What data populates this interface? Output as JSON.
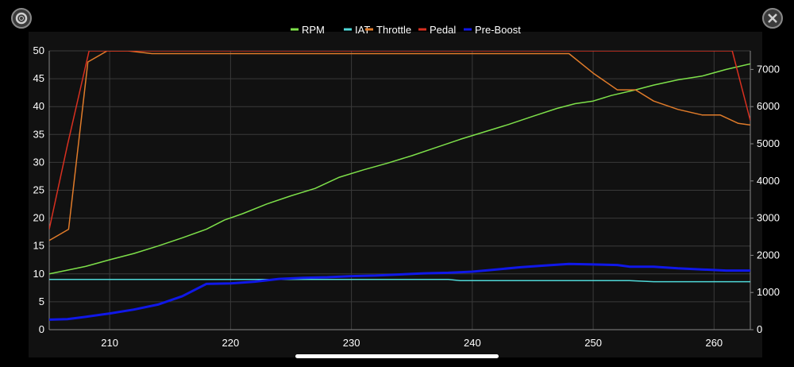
{
  "chart_data": {
    "type": "line",
    "legend_position": "top-center",
    "grid": true,
    "x_range": [
      205,
      263
    ],
    "x_ticks": [
      210,
      220,
      230,
      240,
      250,
      260
    ],
    "y_left": {
      "range": [
        0,
        50
      ],
      "ticks": [
        0,
        5,
        10,
        15,
        20,
        25,
        30,
        35,
        40,
        45,
        50
      ]
    },
    "y_right": {
      "range": [
        0,
        7500
      ],
      "ticks": [
        0,
        1000,
        2000,
        3000,
        4000,
        5000,
        6000,
        7000
      ]
    },
    "series": [
      {
        "name": "RPM",
        "color": "#7ee04a",
        "axis": "right",
        "width": 1.5,
        "points": [
          [
            205,
            1500
          ],
          [
            206.5,
            1600
          ],
          [
            208,
            1700
          ],
          [
            210,
            1880
          ],
          [
            212,
            2050
          ],
          [
            214,
            2250
          ],
          [
            216,
            2470
          ],
          [
            218,
            2700
          ],
          [
            219.5,
            2950
          ],
          [
            221,
            3120
          ],
          [
            223,
            3380
          ],
          [
            225,
            3600
          ],
          [
            227,
            3800
          ],
          [
            229,
            4100
          ],
          [
            231,
            4300
          ],
          [
            233,
            4480
          ],
          [
            235,
            4680
          ],
          [
            237,
            4900
          ],
          [
            239,
            5120
          ],
          [
            241,
            5320
          ],
          [
            243,
            5520
          ],
          [
            245,
            5740
          ],
          [
            247,
            5950
          ],
          [
            248.5,
            6080
          ],
          [
            250,
            6150
          ],
          [
            251.5,
            6300
          ],
          [
            253.5,
            6450
          ],
          [
            255,
            6580
          ],
          [
            257,
            6720
          ],
          [
            259,
            6820
          ],
          [
            261,
            7000
          ],
          [
            263,
            7150
          ]
        ]
      },
      {
        "name": "IAT",
        "color": "#4fd8d8",
        "axis": "left",
        "width": 1.5,
        "points": [
          [
            205,
            9.0
          ],
          [
            238,
            9.0
          ],
          [
            239,
            8.8
          ],
          [
            253,
            8.8
          ],
          [
            255,
            8.6
          ],
          [
            263,
            8.6
          ]
        ]
      },
      {
        "name": "Throttle",
        "color": "#e07b2a",
        "axis": "left",
        "width": 1.5,
        "points": [
          [
            205,
            16
          ],
          [
            206.6,
            18
          ],
          [
            208.2,
            48
          ],
          [
            209.8,
            50
          ],
          [
            211.5,
            50
          ],
          [
            213.5,
            49.5
          ],
          [
            248,
            49.5
          ],
          [
            250,
            46
          ],
          [
            252,
            43
          ],
          [
            253.5,
            43
          ],
          [
            255,
            41
          ],
          [
            257,
            39.5
          ],
          [
            259,
            38.5
          ],
          [
            260.5,
            38.5
          ],
          [
            262,
            37
          ],
          [
            263,
            36.7
          ]
        ]
      },
      {
        "name": "Pedal",
        "color": "#d83020",
        "axis": "left",
        "width": 1.5,
        "points": [
          [
            205,
            18
          ],
          [
            206.5,
            33
          ],
          [
            208.3,
            50
          ],
          [
            261.5,
            50
          ],
          [
            263,
            37.5
          ]
        ]
      },
      {
        "name": "Pre-Boost",
        "color": "#1018e8",
        "axis": "left",
        "width": 3,
        "points": [
          [
            205,
            1.8
          ],
          [
            206.5,
            1.9
          ],
          [
            208,
            2.3
          ],
          [
            210,
            2.9
          ],
          [
            212,
            3.6
          ],
          [
            214,
            4.5
          ],
          [
            216,
            6.0
          ],
          [
            218,
            8.2
          ],
          [
            220,
            8.3
          ],
          [
            222,
            8.6
          ],
          [
            224,
            9.1
          ],
          [
            226,
            9.3
          ],
          [
            228,
            9.4
          ],
          [
            230,
            9.6
          ],
          [
            232,
            9.7
          ],
          [
            234,
            9.9
          ],
          [
            236,
            10.1
          ],
          [
            238,
            10.2
          ],
          [
            240,
            10.4
          ],
          [
            242,
            10.8
          ],
          [
            244,
            11.2
          ],
          [
            246,
            11.5
          ],
          [
            248,
            11.8
          ],
          [
            250,
            11.7
          ],
          [
            252,
            11.6
          ],
          [
            253,
            11.3
          ],
          [
            255,
            11.3
          ],
          [
            257,
            11.0
          ],
          [
            259,
            10.8
          ],
          [
            261,
            10.6
          ],
          [
            263,
            10.6
          ]
        ]
      }
    ]
  },
  "controls": {
    "settings_icon": "gear-icon",
    "close_icon": "close-icon"
  }
}
